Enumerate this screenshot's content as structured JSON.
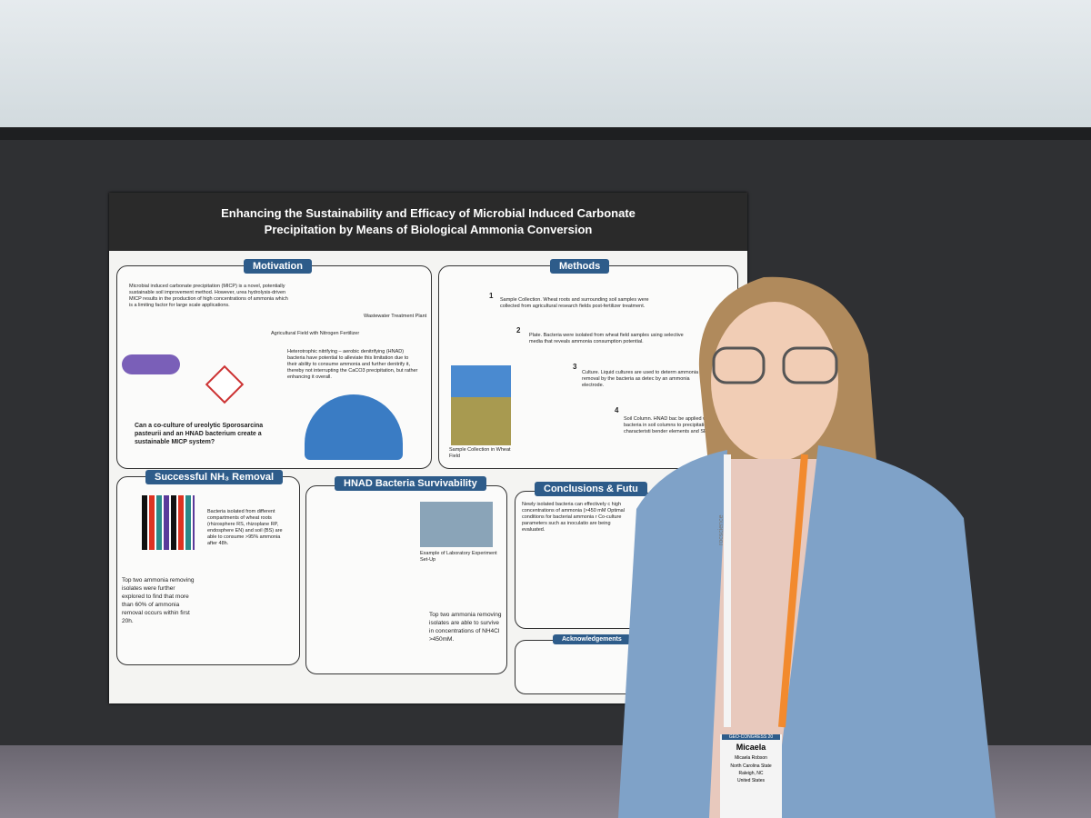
{
  "poster": {
    "title": "Enhancing the Sustainability and Efficacy of Microbial Induced Carbonate Precipitation by Means of Biological Ammonia Conversion",
    "motivation": {
      "heading": "Motivation",
      "intro": "Microbial induced carbonate precipitation (MICP) is a novel, potentially sustainable soil improvement method. However, urea hydrolysis-driven MICP results in the production of high concentrations of ammonia which is a limiting factor for large scale applications.",
      "captions": [
        "Wastewater Treatment Plant",
        "Agricultural Field with Nitrogen Fertilizer"
      ],
      "hnad": "Heterotrophic nitrifying – aerobic denitrifying (HNAD) bacteria have potential to alleviate this limitation due to their ability to consume ammonia and further denitrify it, thereby not interrupting the CaCO3 precipitation, but rather enhancing it overall.",
      "question": "Can a co-culture of ureolytic Sporosarcina pasteurii and an HNAD bacterium create a sustainable MICP system?"
    },
    "methods": {
      "heading": "Methods",
      "steps": [
        {
          "number": "1",
          "text": "Sample Collection. Wheat roots and surrounding soil samples were collected from agricultural research fields post-fertilizer treatment."
        },
        {
          "number": "2",
          "text": "Plate. Bacteria were isolated from wheat field samples using selective media that reveals ammonia consumption potential."
        },
        {
          "number": "3",
          "text": "Culture. Liquid cultures are used to determ ammonia removal by the bacteria as detec by an ammonia electrode."
        },
        {
          "number": "4",
          "text": "Soil Column. HNAD bac be applied with ureolyti bacteria in soil columns to precipitation characteristi bender elements and SEM"
        }
      ],
      "caption": "Sample Collection in Wheat Field"
    },
    "removal": {
      "heading": "Successful NH₃ Removal",
      "text1": "Bacteria isolated from different compartments of wheat roots (rhizosphere RS, rhizoplane RP, endosphere EN) and soil (BS) are able to consume >95% ammonia after 48h.",
      "text2": "Top two ammonia removing isolates were further explored to find that more than 60% of ammonia removal occurs within first 20h."
    },
    "survival": {
      "heading": "HNAD Bacteria Survivability",
      "caption": "Example of Laboratory Experiment Set-Up",
      "text": "Top two ammonia removing isolates are able to survive in concentrations of NH4Cl >450mM."
    },
    "conclusions": {
      "heading": "Conclusions & Futu",
      "text": "Newly isolated bacteria can effectively c high concentrations of ammonia (>450 mM Optimal conditions for bacterial ammonia r Co-culture parameters such as inoculatio are being evaluated."
    },
    "acknowledgements": {
      "heading": "Acknowledgements"
    }
  },
  "badge": {
    "event": "GEO-CONGRESS 20",
    "first_name": "Micaela",
    "full_name": "Micaela Robson",
    "affiliation": "North Carolina State",
    "city": "Raleigh, NC",
    "country": "United States"
  },
  "lanyard": "rocscience"
}
